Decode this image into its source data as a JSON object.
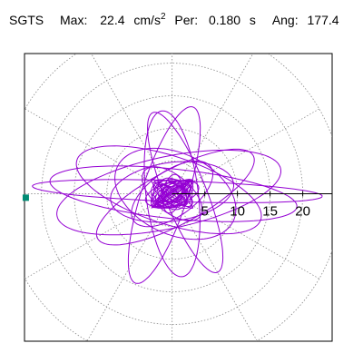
{
  "header": {
    "station": "SGTS",
    "max_label": "Max:",
    "max_value": "22.4",
    "max_unit": "cm/s",
    "max_unit_exp": "2",
    "per_label": "Per:",
    "per_value": "0.180",
    "per_unit": "s",
    "ang_label": "Ang:",
    "ang_value": "177.4"
  },
  "chart_data": {
    "type": "scatter",
    "title": "SGTS Max: 22.4 cm/s2 Per: 0.180 s Ang: 177.4",
    "xlabel": "",
    "ylabel": "",
    "polar_grid": true,
    "rings": [
      5,
      10,
      15,
      20
    ],
    "radial_tick_labels": [
      "5",
      "10",
      "15",
      "20"
    ],
    "xlim": [
      -22.6,
      24.5
    ],
    "ylim": [
      -22.6,
      21.5
    ],
    "max_amplitude": 22.4,
    "period_s": 0.18,
    "angle_deg": 177.4,
    "max_marker": {
      "x": -22.4,
      "y": -0.6
    },
    "trace_color": "#9400d3",
    "marker_color": "#008b74",
    "axis_color": "#000000",
    "grid_color": "#888888",
    "trace_components": [
      {
        "rx": 22.2,
        "ry": 1.6,
        "tilt_deg": -2,
        "cx": 0.8,
        "cy": 0.4,
        "turns": 1
      },
      {
        "rx": 19.0,
        "ry": 3.8,
        "tilt_deg": -6,
        "cx": 0.2,
        "cy": 0.0,
        "turns": 1
      },
      {
        "rx": 17.5,
        "ry": 5.5,
        "tilt_deg": 12,
        "cx": -0.5,
        "cy": 0.2,
        "turns": 1
      },
      {
        "rx": 14.8,
        "ry": 5.2,
        "tilt_deg": -18,
        "cx": -0.5,
        "cy": 0.6,
        "turns": 1
      },
      {
        "rx": 13.5,
        "ry": 4.2,
        "tilt_deg": 28,
        "cx": 0.5,
        "cy": -0.5,
        "turns": 1
      },
      {
        "rx": 14.2,
        "ry": 3.5,
        "tilt_deg": 72,
        "cx": -1.2,
        "cy": -0.2,
        "turns": 1
      },
      {
        "rx": 13.2,
        "ry": 3.2,
        "tilt_deg": 112,
        "cx": 2.0,
        "cy": 0.2,
        "turns": 1
      },
      {
        "rx": 12.8,
        "ry": 4.0,
        "tilt_deg": 97,
        "cx": 0.0,
        "cy": 0.0,
        "turns": 1
      },
      {
        "rx": 9.5,
        "ry": 4.5,
        "tilt_deg": 8,
        "cx": 0.0,
        "cy": 0.3,
        "turns": 1
      },
      {
        "rx": 9.8,
        "ry": 6.2,
        "tilt_deg": -25,
        "cx": 0.5,
        "cy": 0.0,
        "turns": 1
      },
      {
        "rx": 7.2,
        "ry": 3.5,
        "tilt_deg": 35,
        "cx": 0.0,
        "cy": 0.0,
        "turns": 1
      },
      {
        "rx": 5.5,
        "ry": 2.8,
        "tilt_deg": -40,
        "cx": 0.0,
        "cy": 0.0,
        "turns": 1
      },
      {
        "rx": 4.2,
        "ry": 1.8,
        "tilt_deg": 15,
        "cx": 0.0,
        "cy": 0.0,
        "turns": 1
      },
      {
        "rx": 3.0,
        "ry": 1.4,
        "tilt_deg": 80,
        "cx": 0.0,
        "cy": 0.0,
        "turns": 1
      },
      {
        "rx": 2.6,
        "ry": 2.0,
        "tilt_deg": -55,
        "cx": 0.0,
        "cy": 0.0,
        "turns": 1
      },
      {
        "rx": 1.8,
        "ry": 1.0,
        "tilt_deg": 30,
        "cx": 0.0,
        "cy": 0.0,
        "turns": 1
      },
      {
        "rx": 1.2,
        "ry": 0.8,
        "tilt_deg": 120,
        "cx": 0.0,
        "cy": 0.0,
        "turns": 1
      }
    ]
  }
}
